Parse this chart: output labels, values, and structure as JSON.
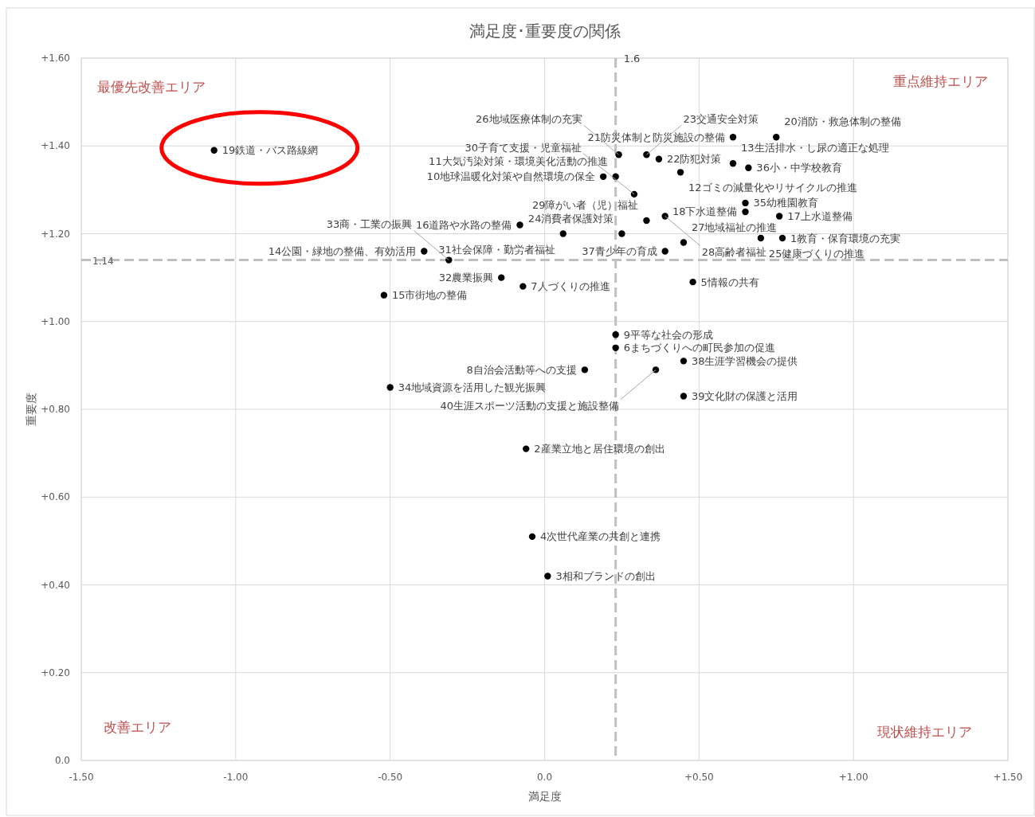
{
  "chart_data": {
    "type": "scatter",
    "title": "満足度･重要度の関係",
    "xlabel": "満足度",
    "ylabel": "重要度",
    "xlim": [
      -1.5,
      1.5
    ],
    "ylim": [
      0,
      1.6
    ],
    "xticks": [
      {
        "value": -1.5,
        "label": "-1.50"
      },
      {
        "value": -1.0,
        "label": "-1.00"
      },
      {
        "value": -0.5,
        "label": "-0.50"
      },
      {
        "value": 0,
        "label": "0.0"
      },
      {
        "value": 0.5,
        "label": "+0.50"
      },
      {
        "value": 1.0,
        "label": "+1.00"
      },
      {
        "value": 1.5,
        "label": "+1.50"
      }
    ],
    "yticks": [
      {
        "value": 0,
        "label": "0.0"
      },
      {
        "value": 0.2,
        "label": "+0.20"
      },
      {
        "value": 0.4,
        "label": "+0.40"
      },
      {
        "value": 0.6,
        "label": "+0.60"
      },
      {
        "value": 0.8,
        "label": "+0.80"
      },
      {
        "value": 1.0,
        "label": "+1.00"
      },
      {
        "value": 1.2,
        "label": "+1.20"
      },
      {
        "value": 1.4,
        "label": "+1.40"
      },
      {
        "value": 1.6,
        "label": "+1.60"
      }
    ],
    "grid": true,
    "marker": "circle",
    "x": [
      0.77,
      -0.06,
      0.01,
      -0.04,
      0.48,
      0.23,
      -0.07,
      0.13,
      0.23,
      0.19,
      0.23,
      0.44,
      0.61,
      -0.39,
      -0.52,
      -0.08,
      0.76,
      0.65,
      -1.07,
      0.75,
      0.61,
      0.37,
      0.33,
      0.25,
      0.7,
      0.24,
      0.45,
      0.39,
      0.33,
      0.29,
      0.06,
      -0.14,
      -0.31,
      -0.5,
      0.65,
      0.66,
      0.39,
      0.45,
      0.45,
      0.36
    ],
    "values": [
      1.19,
      0.71,
      0.42,
      0.51,
      1.09,
      0.94,
      1.08,
      0.89,
      0.97,
      1.33,
      1.33,
      1.34,
      1.36,
      1.16,
      1.06,
      1.22,
      1.24,
      1.25,
      1.39,
      1.42,
      1.42,
      1.37,
      1.38,
      1.2,
      1.19,
      1.38,
      1.18,
      1.24,
      1.23,
      1.29,
      1.2,
      1.1,
      1.14,
      0.85,
      1.27,
      1.35,
      1.16,
      0.91,
      0.83,
      0.89
    ],
    "color": "#000000",
    "ref_lines": [
      {
        "axis": "x",
        "value": 0.23,
        "color": "#bfbfbf",
        "line_style": "dashed"
      },
      {
        "axis": "y",
        "value": 1.14,
        "label": "1.14",
        "color": "#bfbfbf",
        "line_style": "dashed"
      }
    ],
    "annotations": [
      "最優先改善エリア",
      "重点維持エリア",
      "改善エリア",
      "現状維持エリア",
      {
        "text": "1.6",
        "x": 0.23,
        "y": 1.6
      },
      {
        "text": "1教育・保育環境の充実",
        "x": 0.77,
        "y": 1.19
      },
      {
        "text": "2産業立地と居住環境の創出",
        "x": -0.06,
        "y": 0.71
      },
      {
        "text": "3相和ブランドの創出",
        "x": 0.01,
        "y": 0.42
      },
      {
        "text": "4次世代産業の共創と連携",
        "x": -0.04,
        "y": 0.51
      },
      {
        "text": "5情報の共有",
        "x": 0.48,
        "y": 1.09
      },
      {
        "text": "6まちづくりへの町民参加の促進",
        "x": 0.23,
        "y": 0.94
      },
      {
        "text": "7人づくりの推進",
        "x": -0.07,
        "y": 1.08
      },
      {
        "text": "8自治会活動等への支援",
        "x": 0.13,
        "y": 0.89
      },
      {
        "text": "9平等な社会の形成",
        "x": 0.23,
        "y": 0.97
      },
      {
        "text": "10地球温暖化対策や自然環境の保全",
        "x": 0.19,
        "y": 1.33
      },
      {
        "text": "11大気汚染対策・環境美化活動の推進",
        "x": 0.23,
        "y": 1.33
      },
      {
        "text": "12ゴミの減量化やリサイクルの推進",
        "x": 0.44,
        "y": 1.34
      },
      {
        "text": "13生活排水・し尿の適正な処理",
        "x": 0.61,
        "y": 1.36
      },
      {
        "text": "14公園・緑地の整備、有効活用",
        "x": -0.39,
        "y": 1.16
      },
      {
        "text": "15市街地の整備",
        "x": -0.52,
        "y": 1.06
      },
      {
        "text": "16道路や水路の整備",
        "x": -0.08,
        "y": 1.22
      },
      {
        "text": "17上水道整備",
        "x": 0.76,
        "y": 1.24
      },
      {
        "text": "18下水道整備",
        "x": 0.65,
        "y": 1.25
      },
      {
        "text": "19鉄道・バス路線網",
        "x": -1.07,
        "y": 1.39
      },
      {
        "text": "20消防・救急体制の整備",
        "x": 0.75,
        "y": 1.42
      },
      {
        "text": "21防災体制と防災施設の整備",
        "x": 0.61,
        "y": 1.42
      },
      {
        "text": "22防犯対策",
        "x": 0.37,
        "y": 1.37
      },
      {
        "text": "23交通安全対策",
        "x": 0.33,
        "y": 1.38
      },
      {
        "text": "24消費者保護対策",
        "x": 0.25,
        "y": 1.2
      },
      {
        "text": "25健康づくりの推進",
        "x": 0.7,
        "y": 1.19
      },
      {
        "text": "26地域医療体制の充実",
        "x": 0.24,
        "y": 1.38
      },
      {
        "text": "27地域福祉の推進",
        "x": 0.45,
        "y": 1.18
      },
      {
        "text": "28高齢者福祉",
        "x": 0.39,
        "y": 1.24
      },
      {
        "text": "29障がい者（児）福祉",
        "x": 0.33,
        "y": 1.23
      },
      {
        "text": "30子育て支援・児童福祉",
        "x": 0.29,
        "y": 1.29
      },
      {
        "text": "31社会保障・勤労者福祉",
        "x": 0.06,
        "y": 1.2
      },
      {
        "text": "32農業振興",
        "x": -0.14,
        "y": 1.1
      },
      {
        "text": "33商・工業の振興",
        "x": -0.31,
        "y": 1.14
      },
      {
        "text": "34地域資源を活用した観光振興",
        "x": -0.5,
        "y": 0.85
      },
      {
        "text": "35幼稚園教育",
        "x": 0.65,
        "y": 1.27
      },
      {
        "text": "36小・中学校教育",
        "x": 0.66,
        "y": 1.35
      },
      {
        "text": "37青少年の育成",
        "x": 0.39,
        "y": 1.16
      },
      {
        "text": "38生涯学習機会の提供",
        "x": 0.45,
        "y": 0.91
      },
      {
        "text": "39文化財の保護と活用",
        "x": 0.45,
        "y": 0.83
      },
      {
        "text": "40生涯スポーツ活動の支援と施設整備",
        "x": 0.36,
        "y": 0.89
      }
    ]
  }
}
